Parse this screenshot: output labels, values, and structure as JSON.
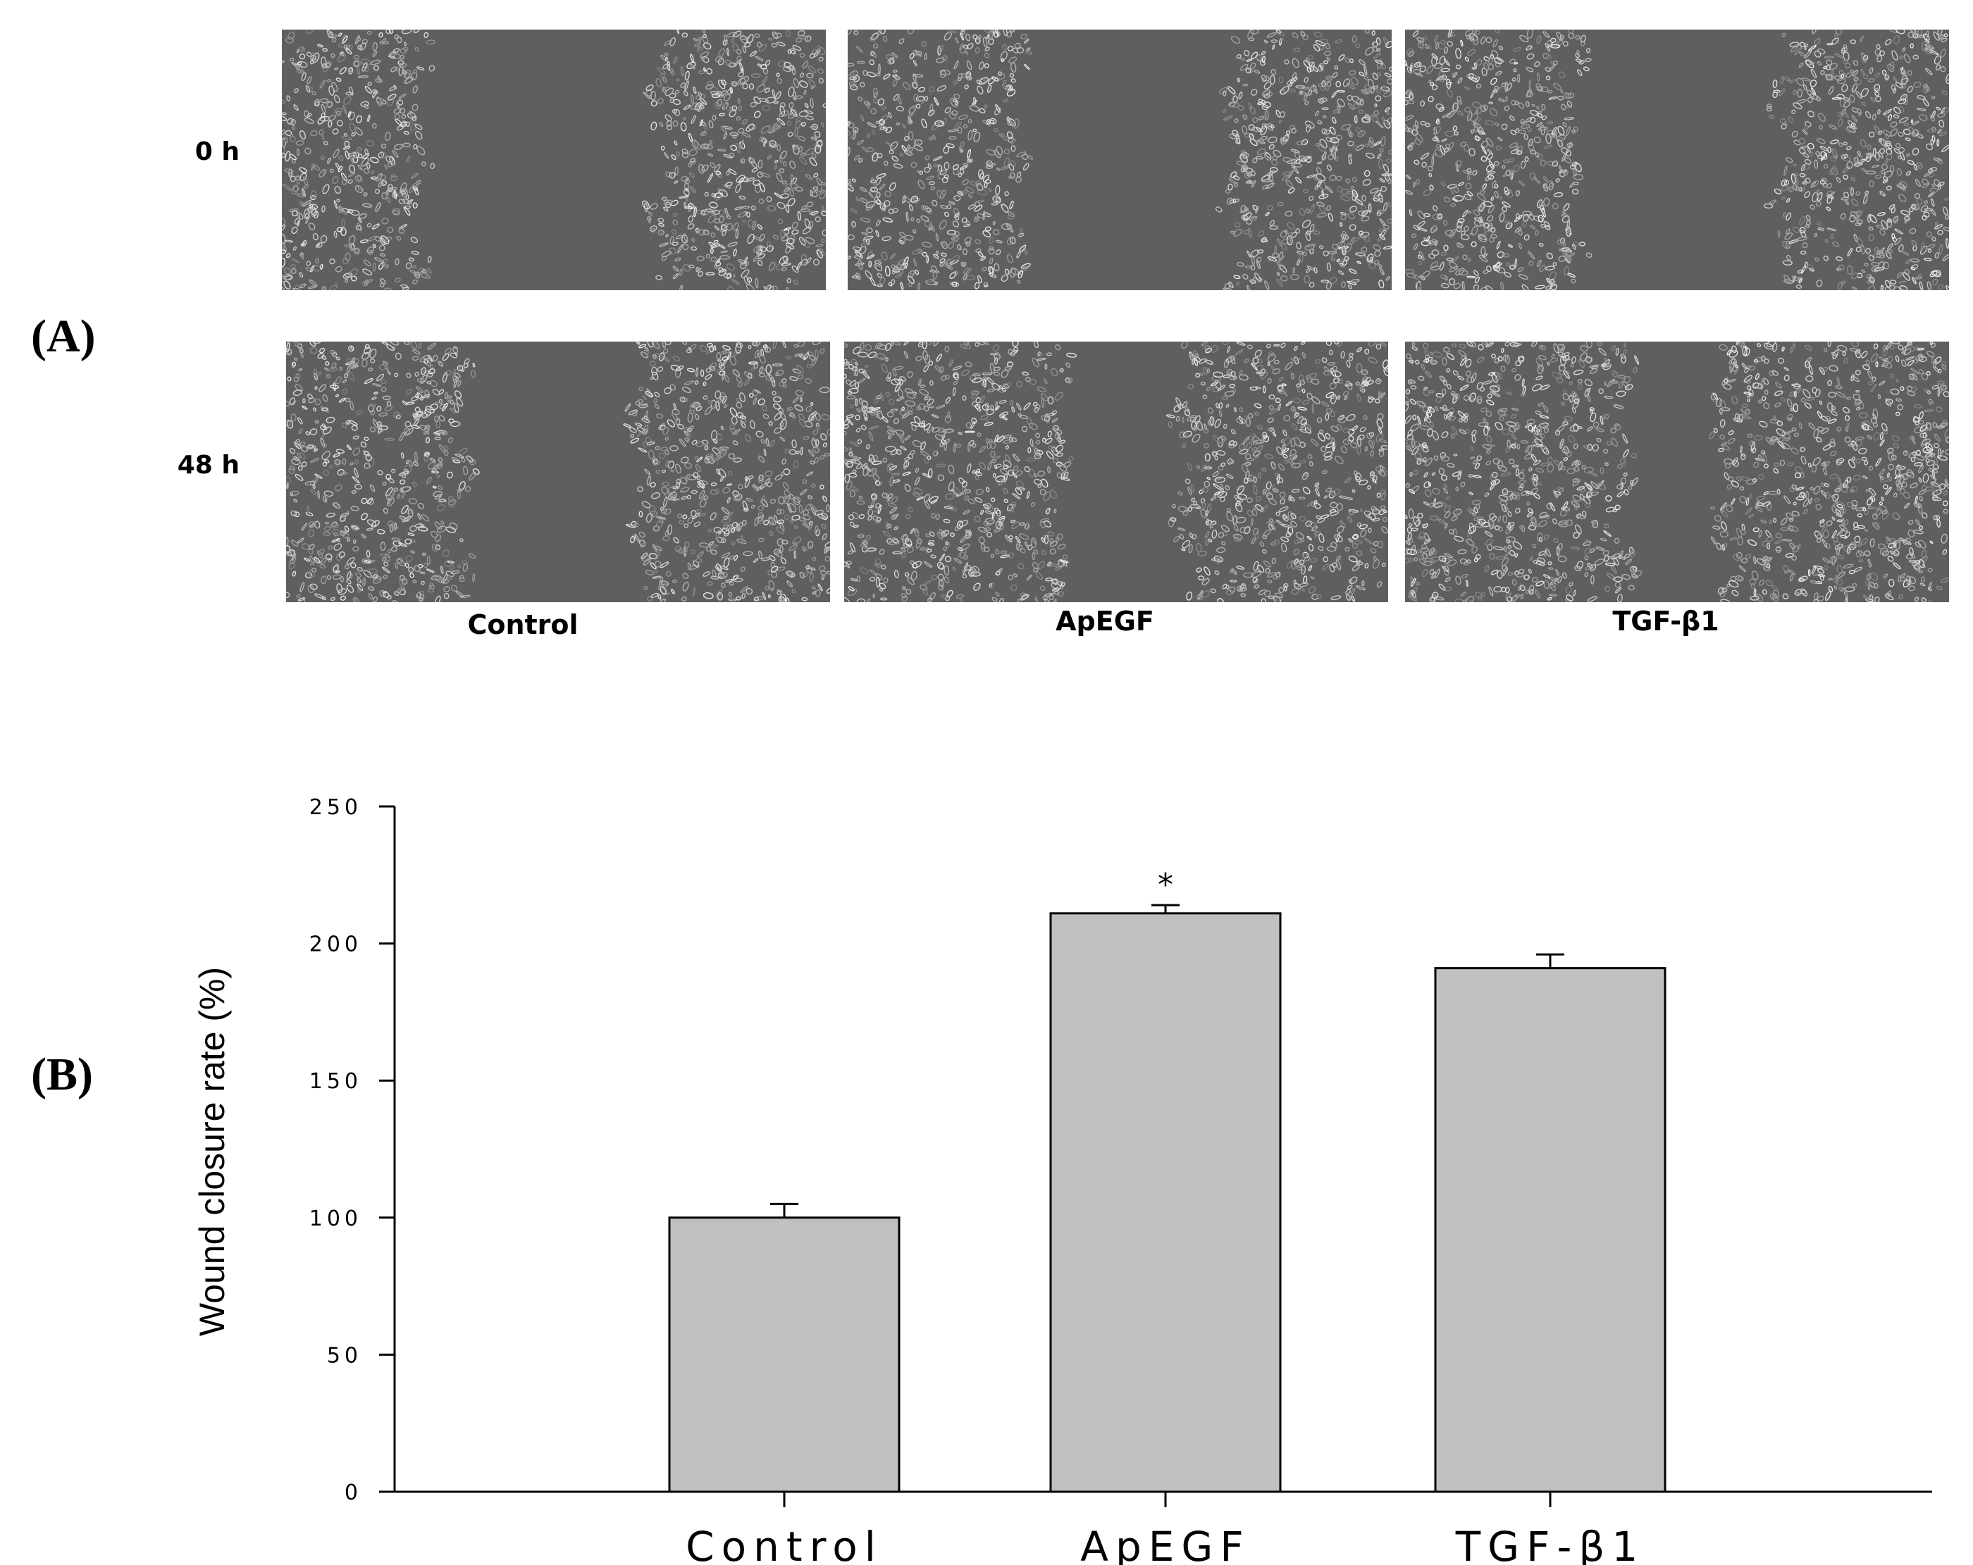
{
  "panels": {
    "a_label": "(A)",
    "b_label": "(B)"
  },
  "micrographs": {
    "rows": [
      "0 h",
      "48 h"
    ],
    "columns": [
      "Control",
      "ApEGF",
      "TGF-β1"
    ],
    "images": [
      [
        {
          "gap_fraction": 0.42
        },
        {
          "gap_fraction": 0.38
        },
        {
          "gap_fraction": 0.36
        }
      ],
      [
        {
          "gap_fraction": 0.31
        },
        {
          "gap_fraction": 0.21
        },
        {
          "gap_fraction": 0.16
        }
      ]
    ]
  },
  "chart_data": {
    "type": "bar",
    "categories": [
      "Control",
      "ApEGF",
      "TGF-β1"
    ],
    "values": [
      100,
      211,
      191
    ],
    "errors": [
      5,
      3,
      5
    ],
    "annotations": [
      "",
      "*",
      ""
    ],
    "title": "",
    "xlabel": "",
    "ylabel": "Wound closure rate (%)",
    "ylim": [
      0,
      250
    ],
    "yticks": [
      0,
      50,
      100,
      150,
      200,
      250
    ],
    "ytick_labels": [
      "0",
      "50",
      "100",
      "150",
      "200",
      "250"
    ],
    "grid": false,
    "bar_color": "#c0c0c0",
    "edge_color": "#000000"
  }
}
